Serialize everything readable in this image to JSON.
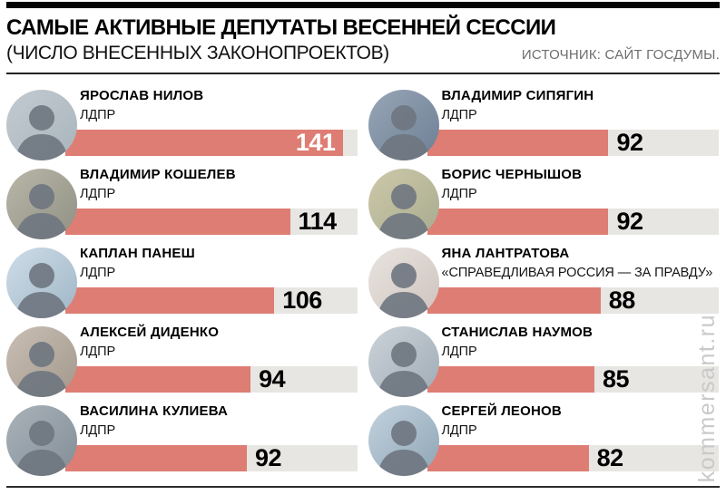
{
  "header": {
    "title": "САМЫЕ АКТИВНЫЕ ДЕПУТАТЫ ВЕСЕННЕЙ СЕССИИ",
    "subtitle": "(ЧИСЛО ВНЕСЕННЫХ ЗАКОНОПРОЕКТОВ)",
    "source": "ИСТОЧНИК: САЙТ ГОСДУМЫ."
  },
  "watermark": "kommersant.ru",
  "colors": {
    "bar_fill": "#de7d73",
    "bar_track": "#e7e6e3",
    "source_text": "#6e6e6e",
    "watermark_text": "#c9c9c9"
  },
  "chart_data": {
    "type": "bar",
    "orientation": "horizontal",
    "title": "САМЫЕ АКТИВНЫЕ ДЕПУТАТЫ ВЕСЕННЕЙ СЕССИИ",
    "subtitle": "(ЧИСЛО ВНЕСЕННЫХ ЗАКОНОПРОЕКТОВ)",
    "source": "ИСТОЧНИК: САЙТ ГОСДУМЫ.",
    "value_label": "число внесенных законопроектов",
    "scale_max": 148,
    "grid": false,
    "legend": false,
    "columns": [
      {
        "rows": [
          {
            "name": "ЯРОСЛАВ НИЛОВ",
            "party": "ЛДПР",
            "value": 141
          },
          {
            "name": "ВЛАДИМИР КОШЕЛЕВ",
            "party": "ЛДПР",
            "value": 114
          },
          {
            "name": "КАПЛАН ПАНЕШ",
            "party": "ЛДПР",
            "value": 106
          },
          {
            "name": "АЛЕКСЕЙ ДИДЕНКО",
            "party": "ЛДПР",
            "value": 94
          },
          {
            "name": "ВАСИЛИНА КУЛИЕВА",
            "party": "ЛДПР",
            "value": 92
          }
        ]
      },
      {
        "rows": [
          {
            "name": "ВЛАДИМИР СИПЯГИН",
            "party": "ЛДПР",
            "value": 92
          },
          {
            "name": "БОРИС ЧЕРНЫШОВ",
            "party": "ЛДПР",
            "value": 92
          },
          {
            "name": "ЯНА ЛАНТРАТОВА",
            "party": "«СПРАВЕДЛИВАЯ РОССИЯ — ЗА ПРАВДУ»",
            "value": 88
          },
          {
            "name": "СТАНИСЛАВ НАУМОВ",
            "party": "ЛДПР",
            "value": 85
          },
          {
            "name": "СЕРГЕЙ ЛЕОНОВ",
            "party": "ЛДПР",
            "value": 82
          }
        ]
      }
    ]
  }
}
